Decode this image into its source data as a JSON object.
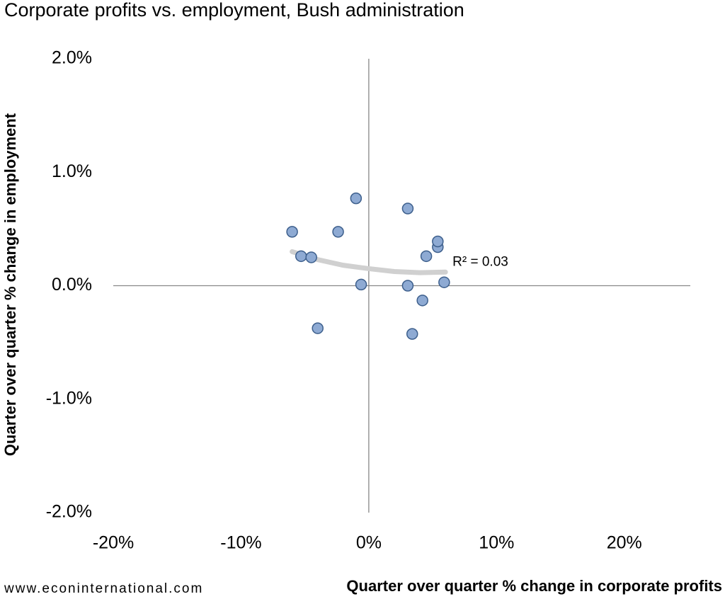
{
  "chart_data": {
    "type": "scatter",
    "title": "Corporate profits vs. employment, Bush administration",
    "x_label": "Quarter over quarter % change in corporate profits",
    "y_label": "Quarter over quarter % change in employment",
    "source": "www.econinternational.com",
    "x": [
      -6.0,
      -5.3,
      -4.5,
      -4.0,
      -2.4,
      -1.0,
      -0.6,
      3.05,
      3.05,
      3.4,
      4.2,
      4.5,
      5.4,
      5.4,
      5.9
    ],
    "values": [
      0.475,
      0.26,
      0.25,
      -0.375,
      0.475,
      0.77,
      0.01,
      0.68,
      0.0,
      -0.425,
      -0.13,
      0.26,
      0.34,
      0.39,
      0.03
    ],
    "color": "#8eaad3",
    "edge_color": "#3d5f8c",
    "trendline": {
      "x": [
        -6.0,
        -4.0,
        -2.0,
        0.0,
        2.0,
        4.0,
        6.0
      ],
      "values": [
        0.3,
        0.23,
        0.18,
        0.15,
        0.125,
        0.115,
        0.12
      ],
      "color": "#d0d0d0",
      "label": "R² = 0.03"
    },
    "xlim": [
      -20,
      25
    ],
    "ylim": [
      -2,
      2
    ],
    "xticks": [
      {
        "value": -20,
        "label": "-20%"
      },
      {
        "value": -10,
        "label": "-10%"
      },
      {
        "value": 0,
        "label": "0%"
      },
      {
        "value": 10,
        "label": "10%"
      },
      {
        "value": 20,
        "label": "20%"
      }
    ],
    "yticks": [
      {
        "value": -2,
        "label": "-2.0%"
      },
      {
        "value": -1,
        "label": "-1.0%"
      },
      {
        "value": 0,
        "label": "0.0%"
      },
      {
        "value": 1,
        "label": "1.0%"
      },
      {
        "value": 2,
        "label": "2.0%"
      }
    ],
    "grid": false
  }
}
